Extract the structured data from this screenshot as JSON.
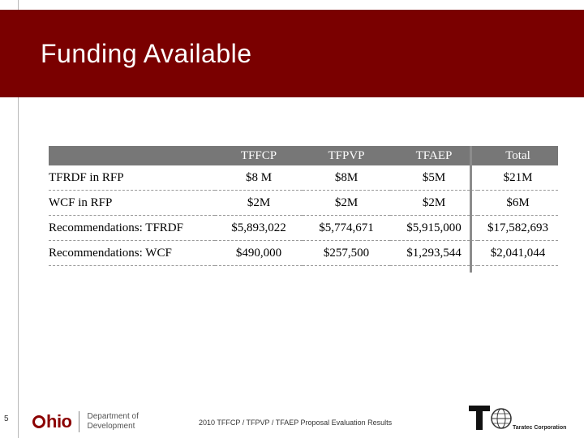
{
  "slide": {
    "title": "Funding Available",
    "page_number": "5",
    "footer": "2010 TFFCP / TFPVP / TFAEP Proposal Evaluation Results"
  },
  "table": {
    "columns": [
      "",
      "TFFCP",
      "TFPVP",
      "TFAEP",
      "Total"
    ],
    "rows": [
      {
        "label": "TFRDF in RFP",
        "values": [
          "$8 M",
          "$8M",
          "$5M",
          "$21M"
        ]
      },
      {
        "label": "WCF in RFP",
        "values": [
          "$2M",
          "$2M",
          "$2M",
          "$6M"
        ]
      },
      {
        "label": "Recommendations: TFRDF",
        "values": [
          "$5,893,022",
          "$5,774,671",
          "$5,915,000",
          "$17,582,693"
        ]
      },
      {
        "label": "Recommendations: WCF",
        "values": [
          "$490,000",
          "$257,500",
          "$1,293,544",
          "$2,041,044"
        ]
      }
    ]
  },
  "logos": {
    "ohio_word": "hio",
    "dept_line1": "Department of",
    "dept_line2": "Development",
    "taratec_name": "Taratec Corporation"
  },
  "colors": {
    "header_band": "#7a0000",
    "table_header": "#777777",
    "ohio_red": "#8b0000"
  },
  "icons": {
    "ohio": "ohio-logo-icon",
    "taratec": "taratec-logo-icon"
  }
}
